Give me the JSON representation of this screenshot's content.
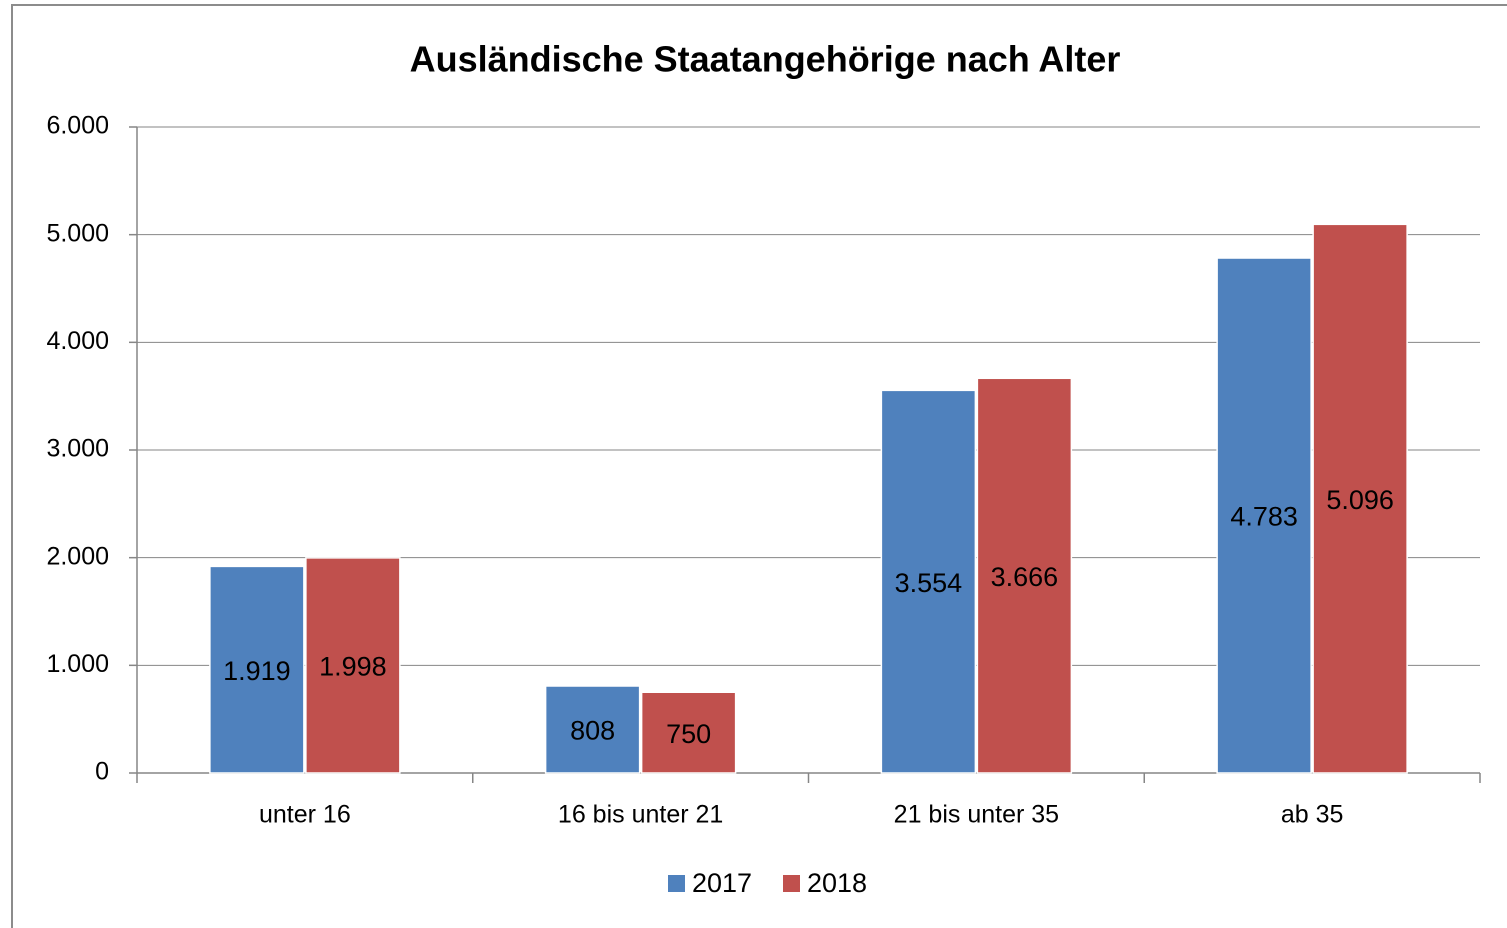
{
  "chart_data": {
    "type": "bar",
    "title": "Ausländische Staatangehörige nach Alter",
    "categories": [
      "unter 16",
      "16 bis unter 21",
      "21 bis unter 35",
      "ab 35"
    ],
    "series": [
      {
        "name": "2017",
        "color": "#4f81bd",
        "values": [
          1919,
          808,
          3554,
          4783
        ],
        "value_labels": [
          "1.919",
          "808",
          "3.554",
          "4.783"
        ]
      },
      {
        "name": "2018",
        "color": "#c0504d",
        "values": [
          1998,
          750,
          3666,
          5096
        ],
        "value_labels": [
          "1.998",
          "750",
          "3.666",
          "5.096"
        ]
      }
    ],
    "ylim": [
      0,
      6000
    ],
    "yticks": [
      0,
      {
        "value": 1000,
        "label": "1.000"
      },
      {
        "value": 2000,
        "label": "2.000"
      },
      {
        "value": 3000,
        "label": "3.000"
      },
      {
        "value": 4000,
        "label": "4.000"
      },
      {
        "value": 5000,
        "label": "5.000"
      },
      {
        "value": 6000,
        "label": "6.000"
      }
    ],
    "grid": true,
    "legend": "bottom"
  }
}
